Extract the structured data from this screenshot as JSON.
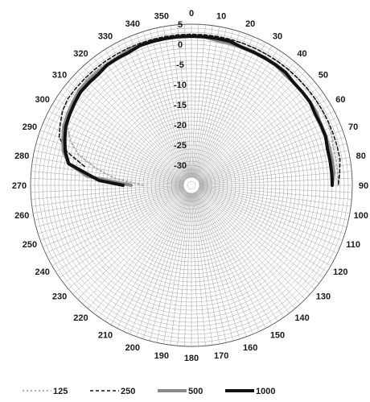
{
  "chart_data": {
    "type": "polar",
    "title": "",
    "angle_unit": "deg",
    "angle_ticks": [
      "0",
      "10",
      "20",
      "30",
      "40",
      "50",
      "60",
      "70",
      "80",
      "90",
      "100",
      "110",
      "120",
      "130",
      "140",
      "150",
      "160",
      "170",
      "180",
      "190",
      "200",
      "210",
      "220",
      "230",
      "240",
      "250",
      "260",
      "270",
      "280",
      "290",
      "300",
      "310",
      "320",
      "330",
      "340",
      "350"
    ],
    "radial_ticks": [
      "5",
      "0",
      "-5",
      "-10",
      "-15",
      "-20",
      "-25",
      "-30"
    ],
    "rlim": [
      -35,
      5
    ],
    "grid": true,
    "legend_position": "bottom",
    "series": [
      {
        "name": "125",
        "style": "dotted",
        "color": "#b0b0b0",
        "angles": [
          270,
          275,
          280,
          285,
          290,
          295,
          300,
          305,
          310,
          315,
          320,
          325,
          330,
          335,
          340,
          345,
          350,
          355,
          0,
          5,
          10,
          15,
          20,
          25,
          30,
          35,
          40,
          45,
          50,
          55,
          60,
          65,
          70,
          75,
          80,
          85,
          90
        ],
        "values": [
          -23,
          -16,
          -11,
          -6,
          -3,
          -1,
          0,
          1,
          1.5,
          2,
          2,
          2,
          2,
          2.5,
          2.5,
          2.5,
          2.5,
          2.5,
          2.5,
          2.5,
          2.5,
          2.5,
          2.5,
          2.5,
          2.5,
          2.5,
          2.5,
          2.5,
          2.5,
          2.5,
          2.5,
          2.5,
          2,
          1.5,
          1.5,
          1.5,
          1.5
        ]
      },
      {
        "name": "250",
        "style": "dashed",
        "color": "#1a1a1a",
        "angles": [
          280,
          285,
          290,
          295,
          300,
          305,
          310,
          315,
          320,
          325,
          330,
          335,
          340,
          345,
          350,
          355,
          0,
          5,
          10,
          15,
          20,
          25,
          30,
          35,
          40,
          45,
          50,
          55,
          60,
          65,
          70,
          75,
          80,
          85,
          90
        ],
        "values": [
          -8,
          -3,
          0,
          1,
          2,
          2.5,
          2.5,
          2.5,
          2.5,
          2.5,
          2.5,
          2.5,
          2.5,
          2.5,
          2.5,
          2.5,
          2.5,
          2.5,
          2.5,
          2.5,
          2.5,
          2.5,
          2.5,
          2.5,
          2.5,
          2.5,
          2.5,
          2.5,
          2.5,
          2.5,
          2.5,
          2.5,
          2.5,
          2,
          1.5
        ]
      },
      {
        "name": "500",
        "style": "solid",
        "color": "#8a8a8a",
        "angles": [
          270,
          275,
          280,
          285,
          290,
          295,
          300,
          305,
          310,
          315,
          320,
          325,
          330,
          335,
          340,
          345,
          350,
          355,
          0,
          5,
          10,
          15,
          20,
          25,
          30,
          35,
          40,
          45,
          50,
          55,
          60,
          65,
          70,
          75,
          80,
          85,
          90
        ],
        "values": [
          -20,
          -9,
          -4,
          -2,
          -1,
          0,
          0.5,
          1,
          1.5,
          1.5,
          1.5,
          1.5,
          1.5,
          2,
          2,
          2,
          2,
          2,
          2,
          2,
          1.5,
          1.5,
          1.5,
          1.5,
          1.5,
          1.5,
          1,
          1,
          1,
          1,
          1,
          0.5,
          0.5,
          0.5,
          0.5,
          0.5,
          0
        ]
      },
      {
        "name": "1000",
        "style": "solid",
        "color": "#111111",
        "angles": [
          270,
          273,
          277,
          280,
          285,
          290,
          295,
          300,
          305,
          310,
          315,
          320,
          325,
          330,
          335,
          340,
          345,
          350,
          355,
          0,
          5,
          10,
          15,
          20,
          25,
          30,
          35,
          40,
          45,
          50,
          55,
          60,
          65,
          70,
          75,
          80,
          85,
          88,
          90
        ],
        "values": [
          -18,
          -12,
          -8,
          -4,
          -2.5,
          -1.5,
          -0.5,
          0,
          0.5,
          1,
          1,
          1,
          1.5,
          1.5,
          1.5,
          2,
          2,
          2,
          2,
          2,
          2,
          2,
          2,
          1.5,
          1.5,
          1.5,
          1.5,
          1.5,
          1,
          1,
          1,
          0.5,
          0.5,
          0.5,
          0,
          0,
          0,
          0,
          0
        ]
      }
    ]
  }
}
